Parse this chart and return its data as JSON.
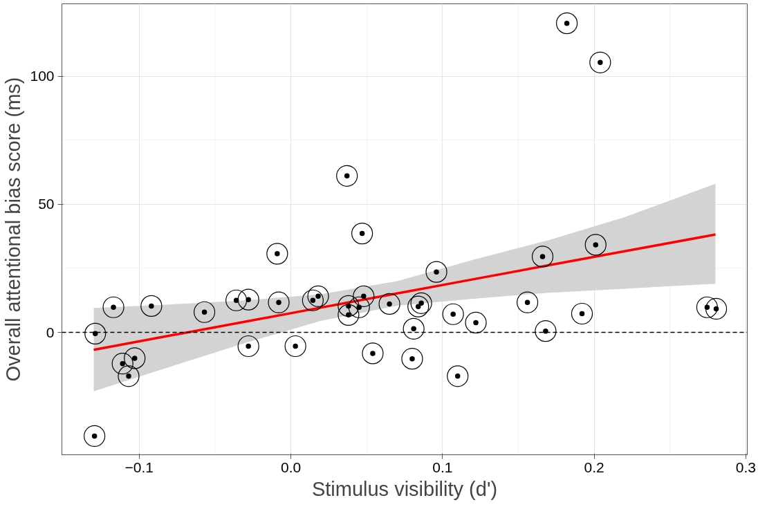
{
  "chart_data": {
    "type": "scatter",
    "xlabel": "Stimulus visibility (d')",
    "ylabel": "Overall attentional bias score (ms)",
    "xlim": [
      -0.151,
      0.301
    ],
    "ylim": [
      -47.8,
      128.3
    ],
    "xticks": [
      {
        "value": -0.1,
        "label": "−0.1"
      },
      {
        "value": 0.0,
        "label": "0.0"
      },
      {
        "value": 0.1,
        "label": "0.1"
      },
      {
        "value": 0.2,
        "label": "0.2"
      },
      {
        "value": 0.3,
        "label": "0.3"
      }
    ],
    "yticks": [
      0,
      50,
      100
    ],
    "grid": true,
    "marker": "circle",
    "ref_lines": [
      {
        "axis": "y",
        "value": 0,
        "line_style": "dashed",
        "color": "#000000"
      }
    ],
    "series": [
      {
        "color": "#000000",
        "x": [
          -0.1295,
          -0.129,
          -0.117,
          -0.111,
          -0.107,
          -0.103,
          -0.092,
          -0.057,
          -0.036,
          -0.028,
          -0.028,
          -0.009,
          -0.008,
          0.003,
          0.0145,
          0.018,
          0.037,
          0.038,
          0.038,
          0.047,
          0.045,
          0.048,
          0.054,
          0.065,
          0.081,
          0.08,
          0.084,
          0.086,
          0.096,
          0.107,
          0.11,
          0.122,
          0.156,
          0.166,
          0.168,
          0.182,
          0.192,
          0.201,
          0.204,
          0.2745,
          0.2805
        ],
        "values": [
          -40.5,
          -0.5,
          9.8,
          -12.2,
          -17.1,
          -10.1,
          10.3,
          7.9,
          12.5,
          12.8,
          -5.4,
          30.7,
          11.7,
          -5.4,
          12.5,
          14.1,
          61.1,
          10.3,
          6.8,
          38.6,
          9.8,
          14.1,
          -8.2,
          11.1,
          1.4,
          -10.3,
          10.1,
          11.4,
          23.6,
          7.1,
          -17.1,
          3.8,
          11.7,
          29.6,
          0.5,
          120.7,
          7.3,
          34.2,
          105.4,
          9.8,
          9.2
        ]
      },
      {
        "type": "line",
        "marker": "none",
        "color": "#ff0000",
        "x": [
          -0.13,
          -0.08,
          -0.03,
          0.02,
          0.07,
          0.12,
          0.17,
          0.22,
          0.28
        ],
        "values": [
          -6.8,
          -1.3,
          4.2,
          9.7,
          15.2,
          20.7,
          26.2,
          31.7,
          38.2
        ],
        "lower": [
          -23.0,
          -13.5,
          -4.1,
          4.5,
          10.4,
          13.1,
          15.5,
          17.0,
          19.0
        ],
        "upper": [
          9.5,
          10.9,
          12.5,
          14.9,
          20.0,
          28.3,
          36.0,
          45.0,
          58.0
        ]
      }
    ]
  }
}
